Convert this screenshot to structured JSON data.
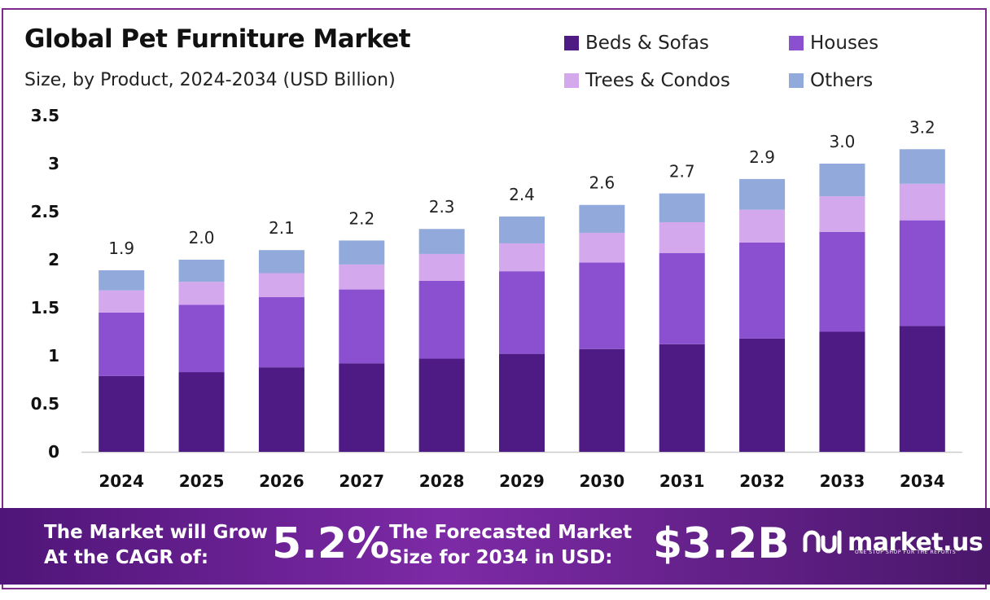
{
  "chart_data": {
    "type": "bar",
    "stacked": true,
    "title": "Global Pet Furniture Market",
    "subtitle": "Size, by Product, 2024-2034 (USD Billion)",
    "xlabel": "",
    "ylabel": "",
    "ylim": [
      0,
      3.5
    ],
    "yticks": [
      "0",
      "0.5",
      "1",
      "1.5",
      "2",
      "2.5",
      "3",
      "3.5"
    ],
    "grid": false,
    "legend_position": "top-right",
    "categories": [
      "2024",
      "2025",
      "2026",
      "2027",
      "2028",
      "2029",
      "2030",
      "2031",
      "2032",
      "2033",
      "2034"
    ],
    "series": [
      {
        "name": "Beds & Sofas",
        "color": "#4e1b85",
        "values": [
          0.79,
          0.83,
          0.88,
          0.92,
          0.97,
          1.02,
          1.07,
          1.12,
          1.18,
          1.25,
          1.31
        ]
      },
      {
        "name": "Houses",
        "color": "#8a50d0",
        "values": [
          0.66,
          0.7,
          0.73,
          0.77,
          0.81,
          0.86,
          0.9,
          0.95,
          1.0,
          1.04,
          1.1
        ]
      },
      {
        "name": "Trees & Condos",
        "color": "#d4a8ec",
        "values": [
          0.23,
          0.24,
          0.25,
          0.26,
          0.28,
          0.29,
          0.31,
          0.32,
          0.34,
          0.37,
          0.38
        ]
      },
      {
        "name": "Others",
        "color": "#92a9db",
        "values": [
          0.21,
          0.23,
          0.24,
          0.25,
          0.26,
          0.28,
          0.29,
          0.3,
          0.32,
          0.34,
          0.36
        ]
      }
    ],
    "total_labels": [
      "1.9",
      "2.0",
      "2.1",
      "2.2",
      "2.3",
      "2.4",
      "2.6",
      "2.7",
      "2.9",
      "3.0",
      "3.2"
    ]
  },
  "banner": {
    "cagr_text_line1": "The Market will Grow",
    "cagr_text_line2": "At the CAGR of:",
    "cagr_value": "5.2%",
    "forecast_text_line1": "The Forecasted Market",
    "forecast_text_line2": "Size for 2034 in USD:",
    "forecast_value": "$3.2B"
  },
  "brand": {
    "name": "market.us",
    "tagline": "ONE STOP SHOP FOR THE REPORTS"
  }
}
